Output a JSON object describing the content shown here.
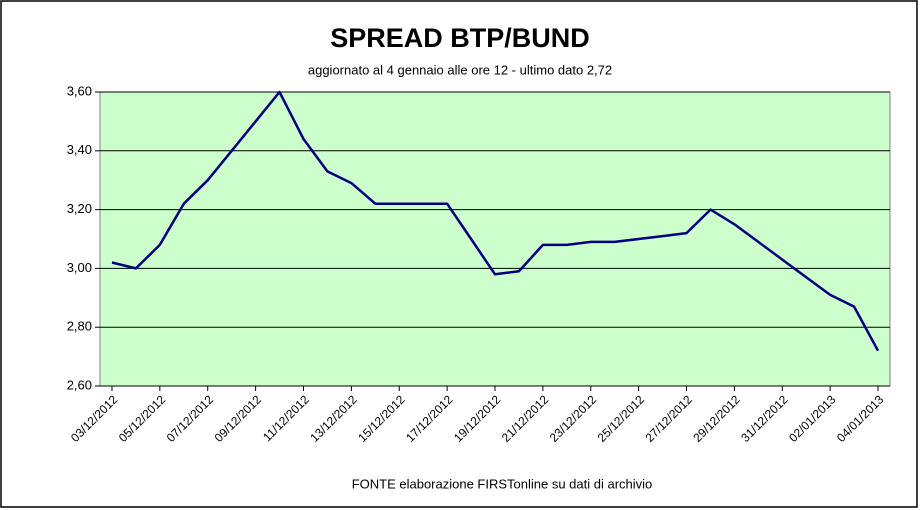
{
  "chart_data": {
    "type": "line",
    "title": "SPREAD  BTP/BUND",
    "subtitle": "aggiornato al 4 gennaio alle ore 12 - ultimo dato 2,72",
    "source": "FONTE elaborazione FIRSTonline su dati di archivio",
    "categories": [
      "03/12/2012",
      null,
      "05/12/2012",
      null,
      "07/12/2012",
      null,
      "09/12/2012",
      null,
      "11/12/2012",
      null,
      "13/12/2012",
      null,
      "15/12/2012",
      null,
      "17/12/2012",
      null,
      "19/12/2012",
      null,
      "21/12/2012",
      null,
      "23/12/2012",
      null,
      "25/12/2012",
      null,
      "27/12/2012",
      null,
      "29/12/2012",
      null,
      "31/12/2012",
      null,
      "02/01/2013",
      null,
      "04/01/2013"
    ],
    "values": [
      3.02,
      3.0,
      3.08,
      3.22,
      3.3,
      3.4,
      3.5,
      3.6,
      3.44,
      3.33,
      3.29,
      3.22,
      3.22,
      3.22,
      3.22,
      3.1,
      2.98,
      2.99,
      3.08,
      3.08,
      3.09,
      3.09,
      3.1,
      3.11,
      3.12,
      3.2,
      3.15,
      3.09,
      3.03,
      2.97,
      2.91,
      2.87,
      2.72
    ],
    "color": "#000080",
    "plot_background": "#ccffcc",
    "ylim": [
      2.6,
      3.6
    ],
    "yticks": [
      {
        "value": 2.6,
        "label": "2,60"
      },
      {
        "value": 2.8,
        "label": "2,80"
      },
      {
        "value": 3.0,
        "label": "3,00"
      },
      {
        "value": 3.2,
        "label": "3,20"
      },
      {
        "value": 3.4,
        "label": "3,40"
      },
      {
        "value": 3.6,
        "label": "3,60"
      }
    ],
    "grid": true
  }
}
